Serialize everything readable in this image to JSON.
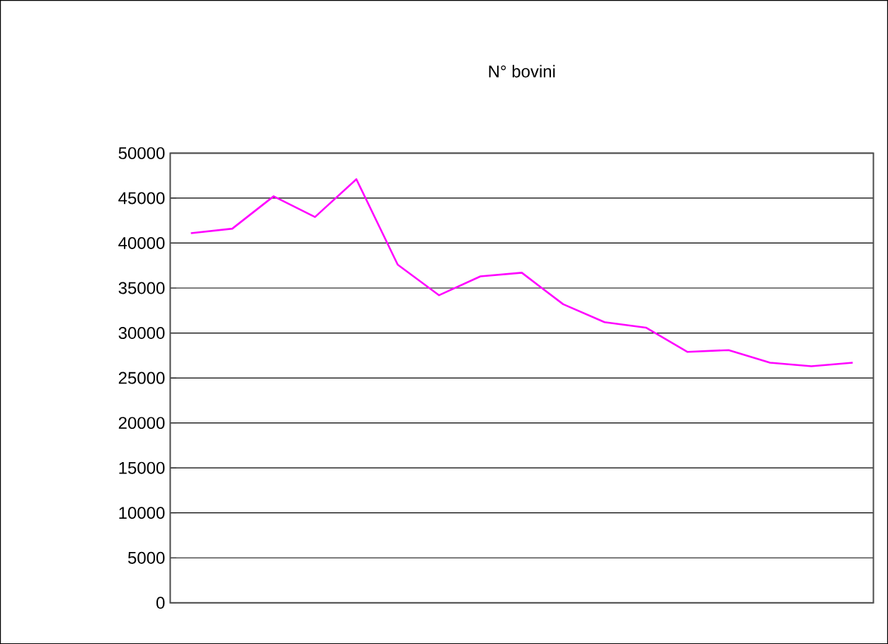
{
  "chart_data": {
    "type": "line",
    "title": "N° bovini",
    "categories": [
      null,
      null,
      null,
      null,
      null,
      null,
      null,
      null,
      null,
      null,
      null,
      null,
      null,
      null,
      null,
      null,
      null
    ],
    "series": [
      {
        "color": "#ff00ff",
        "values": [
          41100,
          41600,
          45200,
          42900,
          47100,
          37600,
          34200,
          36300,
          36700,
          33200,
          31200,
          30600,
          27900,
          28100,
          26700,
          26300,
          26700
        ]
      }
    ],
    "ylim": [
      0,
      50000
    ],
    "yticks": [
      0,
      5000,
      10000,
      15000,
      20000,
      25000,
      30000,
      35000,
      40000,
      45000,
      50000
    ],
    "grid": "y",
    "marker": "none",
    "line_style": "solid"
  }
}
